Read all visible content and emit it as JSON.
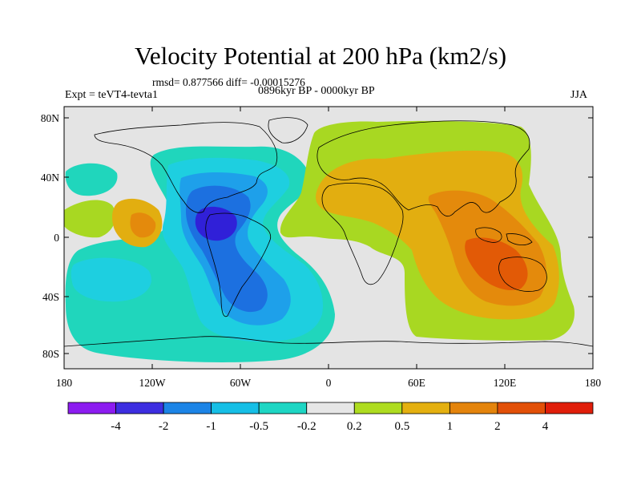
{
  "title": "Velocity Potential at 200 hPa (km2/s)",
  "stats": "rmsd= 0.877566  diff= -0.00015276",
  "left_label": "Expt = teVT4-tevta1",
  "center_label": "0896kyr BP - 0000kyr BP",
  "right_label": "JJA",
  "axes": {
    "x_ticks": [
      "180",
      "120W",
      "60W",
      "0",
      "60E",
      "120E",
      "180"
    ],
    "y_ticks": [
      "80N",
      "40N",
      "0",
      "40S",
      "80S"
    ]
  },
  "colorbar": {
    "colors": [
      "#8c1cf0",
      "#3d2ee0",
      "#1c84e6",
      "#16bfe6",
      "#1ed6c4",
      "#e6e6e6",
      "#aedc20",
      "#e4b010",
      "#e4840c",
      "#e25008",
      "#e01e0a"
    ],
    "labels": [
      "-4",
      "-2",
      "-1",
      "-0.5",
      "-0.2",
      "0.2",
      "0.5",
      "1",
      "2",
      "4"
    ]
  },
  "field_colors": {
    "neg5": "#3020d8",
    "neg4": "#1c70e0",
    "neg3": "#1ea0ea",
    "neg2": "#1ecfe0",
    "neg1": "#20d6bc",
    "zero": "#e4e4e4",
    "pos1": "#a8d822",
    "pos2": "#e2ae10",
    "pos3": "#e48a0c",
    "pos4": "#e25a06"
  }
}
